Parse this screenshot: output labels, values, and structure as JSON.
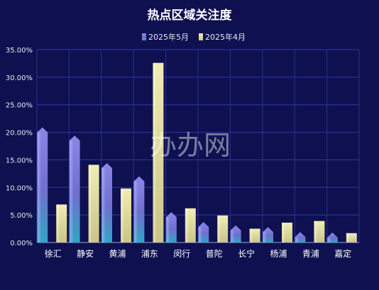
{
  "watermark": "办办网",
  "chart_data": {
    "type": "bar",
    "title": "热点区域关注度",
    "xlabel": "",
    "ylabel": "",
    "categories": [
      "徐汇",
      "静安",
      "黄浦",
      "浦东",
      "闵行",
      "普陀",
      "长宁",
      "杨浦",
      "青浦",
      "嘉定"
    ],
    "series": [
      {
        "name": "2025年5月",
        "values": [
          20.9,
          19.4,
          14.4,
          12.0,
          5.5,
          3.7,
          3.1,
          2.8,
          1.9,
          1.8
        ],
        "color": "#7b7be0"
      },
      {
        "name": "2025年4月",
        "values": [
          6.9,
          14.1,
          9.8,
          32.6,
          6.2,
          4.9,
          2.5,
          3.6,
          3.9,
          1.7
        ],
        "color": "#e6e2a8"
      }
    ],
    "ylim": [
      0,
      35
    ],
    "yticks": [
      "0.00%",
      "5.00%",
      "10.00%",
      "15.00%",
      "20.00%",
      "25.00%",
      "30.00%",
      "35.00%"
    ],
    "grid": true,
    "legend_position": "top-center"
  }
}
